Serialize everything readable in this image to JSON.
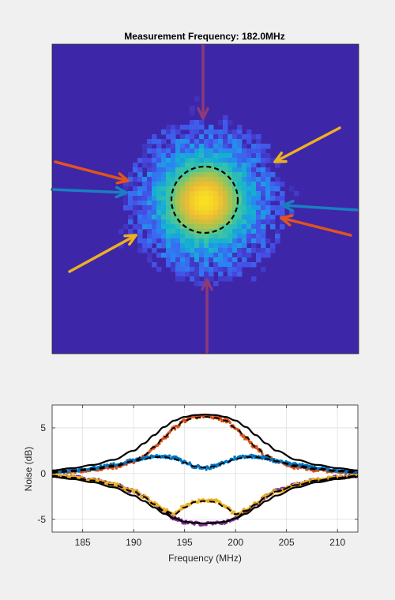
{
  "figure": {
    "background": "#f0f0f0"
  },
  "chart_data": [
    {
      "type": "heatmap",
      "title": "Measurement Frequency: 182.0MHz",
      "colormap": "parula",
      "background_color": "#3e26a8",
      "circle": {
        "style": "dashed",
        "color": "#000000"
      },
      "arrows": [
        {
          "name": "top",
          "color": "#8b3a7a"
        },
        {
          "name": "bottom",
          "color": "#8b3a7a"
        },
        {
          "name": "upper-left",
          "color": "#e0541f"
        },
        {
          "name": "mid-left",
          "color": "#1a7fc0"
        },
        {
          "name": "lower-left",
          "color": "#edb120"
        },
        {
          "name": "upper-right",
          "color": "#edb120"
        },
        {
          "name": "mid-right",
          "color": "#1a7fc0"
        },
        {
          "name": "lower-right",
          "color": "#e0541f"
        }
      ]
    },
    {
      "type": "line",
      "title": "",
      "xlabel": "Frequency (MHz)",
      "ylabel": "Noise (dB)",
      "xlim": [
        182,
        212
      ],
      "ylim": [
        -6.4,
        7.5
      ],
      "xticks": [
        185,
        190,
        195,
        200,
        205,
        210
      ],
      "yticks": [
        -5,
        0,
        5
      ],
      "grid": true,
      "x": [
        182,
        184,
        186,
        188,
        190,
        191,
        192,
        193,
        194,
        195,
        196,
        197,
        198,
        199,
        200,
        201,
        202,
        203,
        204,
        206,
        208,
        210,
        212
      ],
      "series": [
        {
          "color": "#d95319",
          "style": "markers",
          "values": [
            0.1,
            0.25,
            0.4,
            0.7,
            1.3,
            1.9,
            2.8,
            3.9,
            5.0,
            5.8,
            6.2,
            6.3,
            6.2,
            5.8,
            5.0,
            3.9,
            2.8,
            1.9,
            1.3,
            0.7,
            0.4,
            0.25,
            0.1
          ]
        },
        {
          "color": "#0072bd",
          "style": "markers",
          "values": [
            0.15,
            0.35,
            0.6,
            0.95,
            1.4,
            1.7,
            1.9,
            1.9,
            1.7,
            1.25,
            0.8,
            0.6,
            0.8,
            1.25,
            1.7,
            1.9,
            1.9,
            1.7,
            1.4,
            0.95,
            0.6,
            0.35,
            0.15
          ]
        },
        {
          "color": "#7e2f8e",
          "style": "markers",
          "values": [
            -0.2,
            -0.4,
            -0.7,
            -1.2,
            -1.9,
            -2.5,
            -3.3,
            -4.1,
            -4.9,
            -5.3,
            -5.45,
            -5.5,
            -5.45,
            -5.3,
            -4.9,
            -4.1,
            -3.3,
            -2.5,
            -1.9,
            -1.2,
            -0.7,
            -0.4,
            -0.2
          ]
        },
        {
          "color": "#edb120",
          "style": "markers",
          "values": [
            -0.2,
            -0.4,
            -0.7,
            -1.2,
            -1.9,
            -2.5,
            -3.3,
            -4.0,
            -4.4,
            -3.6,
            -3.0,
            -2.9,
            -3.0,
            -3.6,
            -4.4,
            -4.0,
            -3.3,
            -2.5,
            -1.9,
            -1.2,
            -0.7,
            -0.4,
            -0.2
          ]
        },
        {
          "color": "#000000",
          "style": "solid",
          "values": [
            0.35,
            0.6,
            0.95,
            1.5,
            2.5,
            3.3,
            4.2,
            5.1,
            5.8,
            6.2,
            6.4,
            6.45,
            6.4,
            6.2,
            5.8,
            5.1,
            4.2,
            3.3,
            2.5,
            1.5,
            0.95,
            0.6,
            0.35
          ]
        },
        {
          "color": "#000000",
          "style": "solid",
          "values": [
            -0.35,
            -0.6,
            -0.95,
            -1.5,
            -2.4,
            -3.0,
            -3.7,
            -4.4,
            -4.9,
            -5.25,
            -5.4,
            -5.45,
            -5.4,
            -5.25,
            -4.9,
            -4.4,
            -3.7,
            -3.0,
            -2.4,
            -1.5,
            -0.95,
            -0.6,
            -0.35
          ]
        },
        {
          "color": "#000000",
          "style": "dashed",
          "values": [
            0.2,
            0.35,
            0.55,
            0.9,
            1.35,
            1.6,
            1.8,
            1.8,
            1.6,
            1.2,
            0.8,
            0.65,
            0.8,
            1.2,
            1.6,
            1.8,
            1.8,
            1.6,
            1.35,
            0.9,
            0.55,
            0.35,
            0.2
          ]
        },
        {
          "color": "#000000",
          "style": "dashed",
          "values": [
            0.1,
            0.25,
            0.45,
            0.75,
            1.35,
            2.0,
            2.9,
            4.0,
            5.0,
            5.8,
            6.1,
            6.2,
            6.1,
            5.8,
            5.0,
            4.0,
            2.9,
            2.0,
            1.35,
            0.75,
            0.45,
            0.25,
            0.1
          ]
        },
        {
          "color": "#000000",
          "style": "dashed",
          "values": [
            -0.25,
            -0.45,
            -0.75,
            -1.25,
            -1.95,
            -2.55,
            -3.35,
            -4.05,
            -4.45,
            -3.7,
            -3.1,
            -3.0,
            -3.1,
            -3.7,
            -4.45,
            -4.05,
            -3.35,
            -2.55,
            -1.95,
            -1.25,
            -0.75,
            -0.45,
            -0.25
          ]
        },
        {
          "color": "#000000",
          "style": "dashed",
          "values": [
            -0.25,
            -0.45,
            -0.75,
            -1.25,
            -1.95,
            -2.55,
            -3.35,
            -4.15,
            -4.85,
            -5.25,
            -5.4,
            -5.45,
            -5.4,
            -5.25,
            -4.85,
            -4.15,
            -3.35,
            -2.55,
            -1.95,
            -1.25,
            -0.75,
            -0.45,
            -0.25
          ]
        }
      ]
    }
  ]
}
